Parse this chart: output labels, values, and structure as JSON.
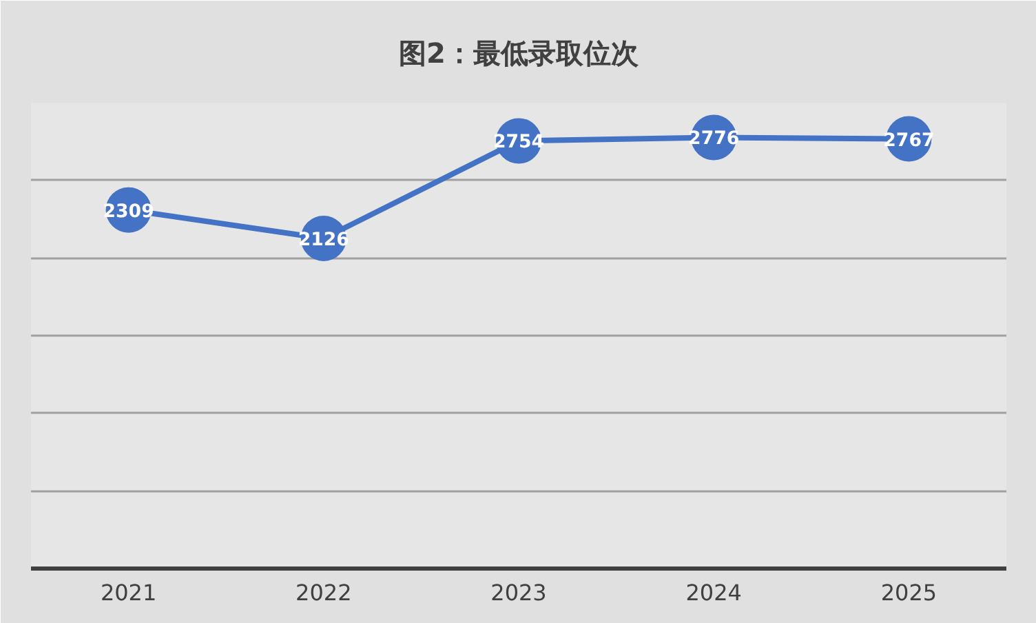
{
  "chart_data": {
    "type": "line",
    "title": "图2：最低录取位次",
    "categories": [
      "2021",
      "2022",
      "2023",
      "2024",
      "2025"
    ],
    "series": [
      {
        "color": "#4472c4",
        "values": [
          2309,
          2126,
          2754,
          2776,
          2767
        ]
      }
    ],
    "ylim": [
      0,
      3000
    ],
    "yticks": [
      {
        "value": 0,
        "label": null
      },
      {
        "value": 500,
        "label": null
      },
      {
        "value": 1000,
        "label": null
      },
      {
        "value": 1500,
        "label": null
      },
      {
        "value": 2000,
        "label": null
      },
      {
        "value": 2500,
        "label": null
      },
      {
        "value": 3000,
        "label": null
      }
    ],
    "tick_labels": "x",
    "grid": "y",
    "marker": "circle",
    "line_style": "solid",
    "data_labels": true
  }
}
